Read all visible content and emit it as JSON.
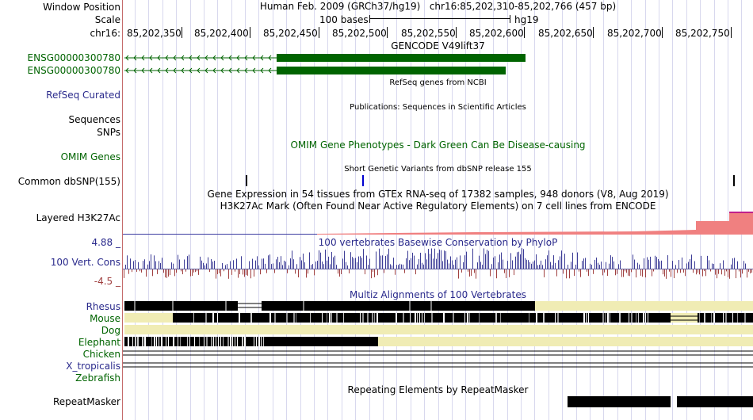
{
  "labels": {
    "window_position": "Window Position",
    "scale": "Scale",
    "chrom": "chr16:",
    "gene1": "ENSG00000300780",
    "gene2": "ENSG00000300780",
    "refseq": "RefSeq Curated",
    "sequences": "Sequences",
    "snps": "SNPs",
    "omim": "OMIM Genes",
    "dbsnp": "Common dbSNP(155)",
    "h3k27ac": "Layered H3K27Ac",
    "cons_max": "4.88 _",
    "cons": "100 Vert. Cons",
    "cons_min": "-4.5 _",
    "rhesus": "Rhesus",
    "mouse": "Mouse",
    "dog": "Dog",
    "elephant": "Elephant",
    "chicken": "Chicken",
    "xtrop": "X_tropicalis",
    "zebrafish": "Zebrafish",
    "repeatmasker": "RepeatMasker"
  },
  "header": {
    "assembly": "Human Feb. 2009 (GRCh37/hg19)",
    "position": "chr16:85,202,310-85,202,766 (457 bp)",
    "scale_text": "100 bases",
    "scale_db": "hg19"
  },
  "ruler": {
    "ticks": [
      "85,202,350",
      "85,202,400",
      "85,202,450",
      "85,202,500",
      "85,202,550",
      "85,202,600",
      "85,202,650",
      "85,202,700",
      "85,202,750"
    ]
  },
  "tracks": {
    "gencode": "GENCODE V49lift37",
    "refseq": "RefSeq genes from NCBI",
    "publications": "Publications: Sequences in Scientific Articles",
    "omim": "OMIM Gene Phenotypes - Dark Green Can Be Disease-causing",
    "dbsnp": "Short Genetic Variants from dbSNP release 155",
    "gtex": "Gene Expression in 54 tissues from GTEx RNA-seq of 17382 samples, 948 donors (V8, Aug 2019)",
    "h3k27ac": "H3K27Ac Mark (Often Found Near Active Regulatory Elements) on 7 cell lines from ENCODE",
    "phylop": "100 vertebrates Basewise Conservation by PhyloP",
    "multiz": "Multiz Alignments of 100 Vertebrates",
    "repeatmasker": "Repeating Elements by RepeatMasker"
  },
  "colors": {
    "gene": "#006400",
    "track_blue": "#2a2a8c",
    "cons_pos": "#3c3c96",
    "cons_neg": "#a04040",
    "h3k27ac": "#f08080",
    "multiz_gap": "#f0ecb4",
    "divider": "#c56b6b"
  }
}
